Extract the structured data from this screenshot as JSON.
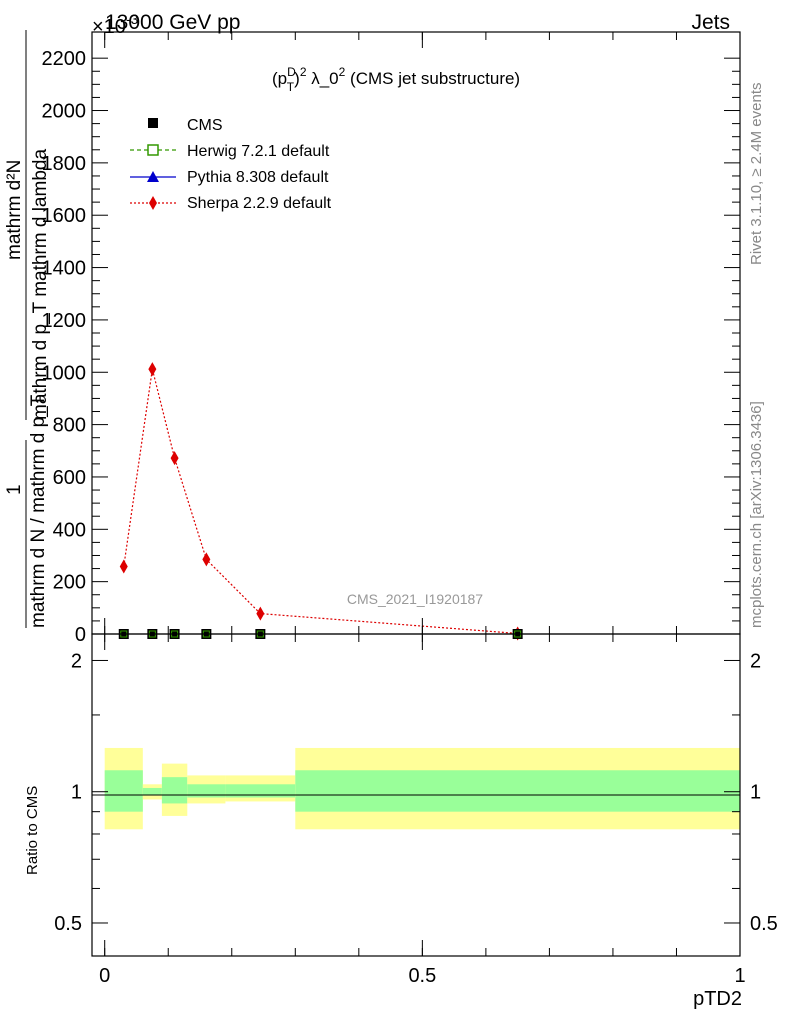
{
  "header": {
    "left": "13000 GeV pp",
    "right": "Jets",
    "exponent": "×10",
    "exponent_power": "-3"
  },
  "side_labels": {
    "rivet": "Rivet 3.1.10, ≥ 2.4M events",
    "mcplots": "mcplots.cern.ch [arXiv:1306.3436]"
  },
  "watermark": "CMS_2021_I1920187",
  "ylabel_main": {
    "numerator": "mathrm d²N",
    "denominator": "mathrm d p_T mathrm d lambda",
    "prefix_num": "1",
    "prefix_den": "mathrm d N / mathrm d p_T"
  },
  "chart_data": [
    {
      "type": "line",
      "title": "(p_T^D)^2 λ_0^2 (CMS jet substructure)",
      "title_parts": {
        "p": "(p",
        "sub": "T",
        "sup_d": "D",
        "close": ")",
        "sup_2": "2",
        "lambda": " λ_0",
        "sup_2b": "2",
        "rest": " (CMS jet substructure)"
      },
      "xlabel": "pTD2",
      "ylim": [
        0,
        2.3
      ],
      "yticks": [
        0,
        0.2,
        0.4,
        0.6,
        0.8,
        1.0,
        1.2,
        1.4,
        1.6,
        1.8,
        2.0,
        2.2
      ],
      "ytick_labels": [
        "0",
        "200",
        "400",
        "600",
        "800",
        "1000",
        "1200",
        "1400",
        "1600",
        "1800",
        "2000",
        "2200"
      ],
      "xlim": [
        -0.02,
        1.0
      ],
      "legend_position": "top-left",
      "legend": [
        {
          "name": "CMS",
          "color": "#000000",
          "marker": "square"
        },
        {
          "name": "Herwig 7.2.1 default",
          "color": "#339900",
          "marker": "open-square",
          "dash": "4,3"
        },
        {
          "name": "Pythia 8.308 default",
          "color": "#0000cc",
          "marker": "triangle"
        },
        {
          "name": "Sherpa 2.2.9 default",
          "color": "#dd0000",
          "marker": "diamond",
          "dash": "2,2"
        }
      ],
      "series": [
        {
          "name": "CMS",
          "x": [
            0.03,
            0.075,
            0.11,
            0.16,
            0.245,
            0.65
          ],
          "y": [
            0.0,
            0.0,
            0.0,
            0.0,
            0.0,
            0.0
          ]
        },
        {
          "name": "Sherpa 2.2.9 default",
          "x": [
            0.03,
            0.075,
            0.11,
            0.16,
            0.245,
            0.65
          ],
          "y": [
            0.258,
            1.012,
            0.672,
            0.285,
            0.078,
            0.002
          ]
        }
      ]
    },
    {
      "type": "area",
      "ylabel": "Ratio to CMS",
      "ylim": [
        0.42,
        2.3
      ],
      "log_scale": true,
      "yticks": [
        0.5,
        1,
        2
      ],
      "ytick_labels": [
        "0.5",
        "1",
        "2"
      ],
      "xlim": [
        -0.02,
        1.0
      ],
      "xticks": [
        0,
        0.5,
        1
      ],
      "xtick_labels": [
        "0",
        "0.5",
        "1"
      ],
      "bins": [
        {
          "x0": 0.0,
          "x1": 0.06,
          "inner": [
            0.9,
            1.12
          ],
          "outer": [
            0.82,
            1.26
          ]
        },
        {
          "x0": 0.06,
          "x1": 0.09,
          "inner": [
            0.98,
            1.02
          ],
          "outer": [
            0.96,
            1.04
          ]
        },
        {
          "x0": 0.09,
          "x1": 0.13,
          "inner": [
            0.94,
            1.08
          ],
          "outer": [
            0.88,
            1.16
          ]
        },
        {
          "x0": 0.13,
          "x1": 0.19,
          "inner": [
            0.97,
            1.04
          ],
          "outer": [
            0.94,
            1.09
          ]
        },
        {
          "x0": 0.19,
          "x1": 0.3,
          "inner": [
            0.97,
            1.04
          ],
          "outer": [
            0.95,
            1.09
          ]
        },
        {
          "x0": 0.3,
          "x1": 1.0,
          "inner": [
            0.9,
            1.12
          ],
          "outer": [
            0.82,
            1.26
          ]
        }
      ],
      "inner_color": "#99ff99",
      "outer_color": "#ffff99"
    }
  ]
}
